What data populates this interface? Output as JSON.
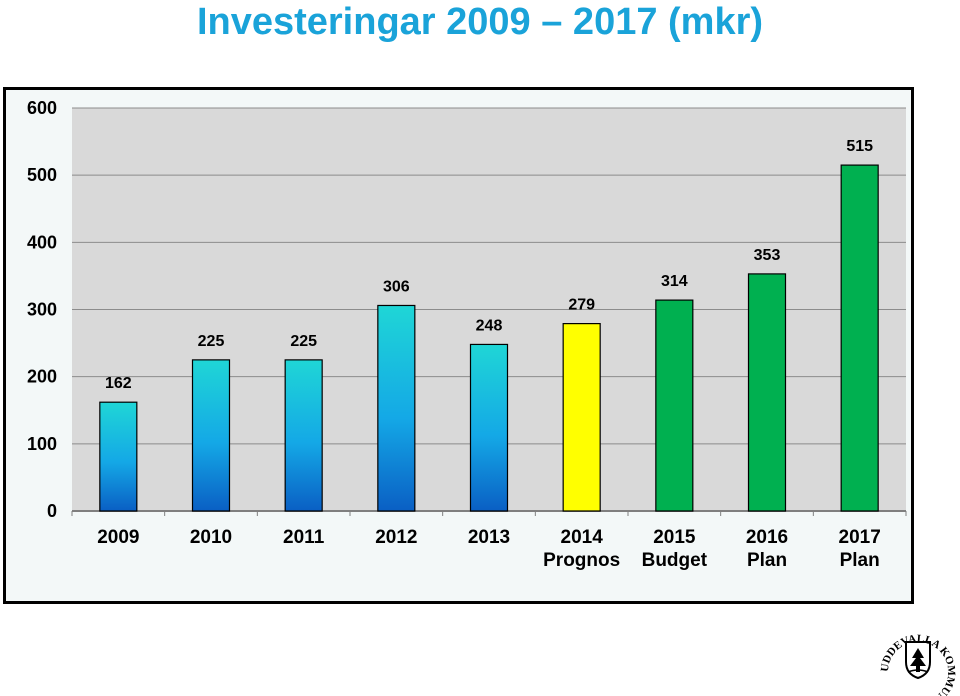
{
  "title": "Investeringar 2009 – 2017 (mkr)",
  "colors": {
    "title": "#1aa3d9",
    "plot_bg": "#d9d9d9",
    "blue_top": "#1fd6d6",
    "blue_bottom": "#0a5fc4",
    "prognos": "#ffff00",
    "plan": "#00b050"
  },
  "chart_data": {
    "type": "bar",
    "title": "Investeringar 2009 – 2017 (mkr)",
    "categories": [
      "2009",
      "2010",
      "2011",
      "2012",
      "2013",
      "2014\nPrognos",
      "2015\nBudget",
      "2016\nPlan",
      "2017\nPlan"
    ],
    "values": [
      162,
      225,
      225,
      306,
      248,
      279,
      314,
      353,
      515
    ],
    "bar_styles": [
      "gradient-blue",
      "gradient-blue",
      "gradient-blue",
      "gradient-blue",
      "gradient-blue",
      "yellow",
      "green",
      "green",
      "green"
    ],
    "yticks": [
      0,
      100,
      200,
      300,
      400,
      500,
      600
    ],
    "ylim": [
      0,
      600
    ],
    "grid": true,
    "xlabel": "",
    "ylabel": "",
    "data_labels": true
  },
  "logo": {
    "text": "UDDEVALLA KOMMUN",
    "icon": "uddevalla-coat-of-arms-icon"
  }
}
